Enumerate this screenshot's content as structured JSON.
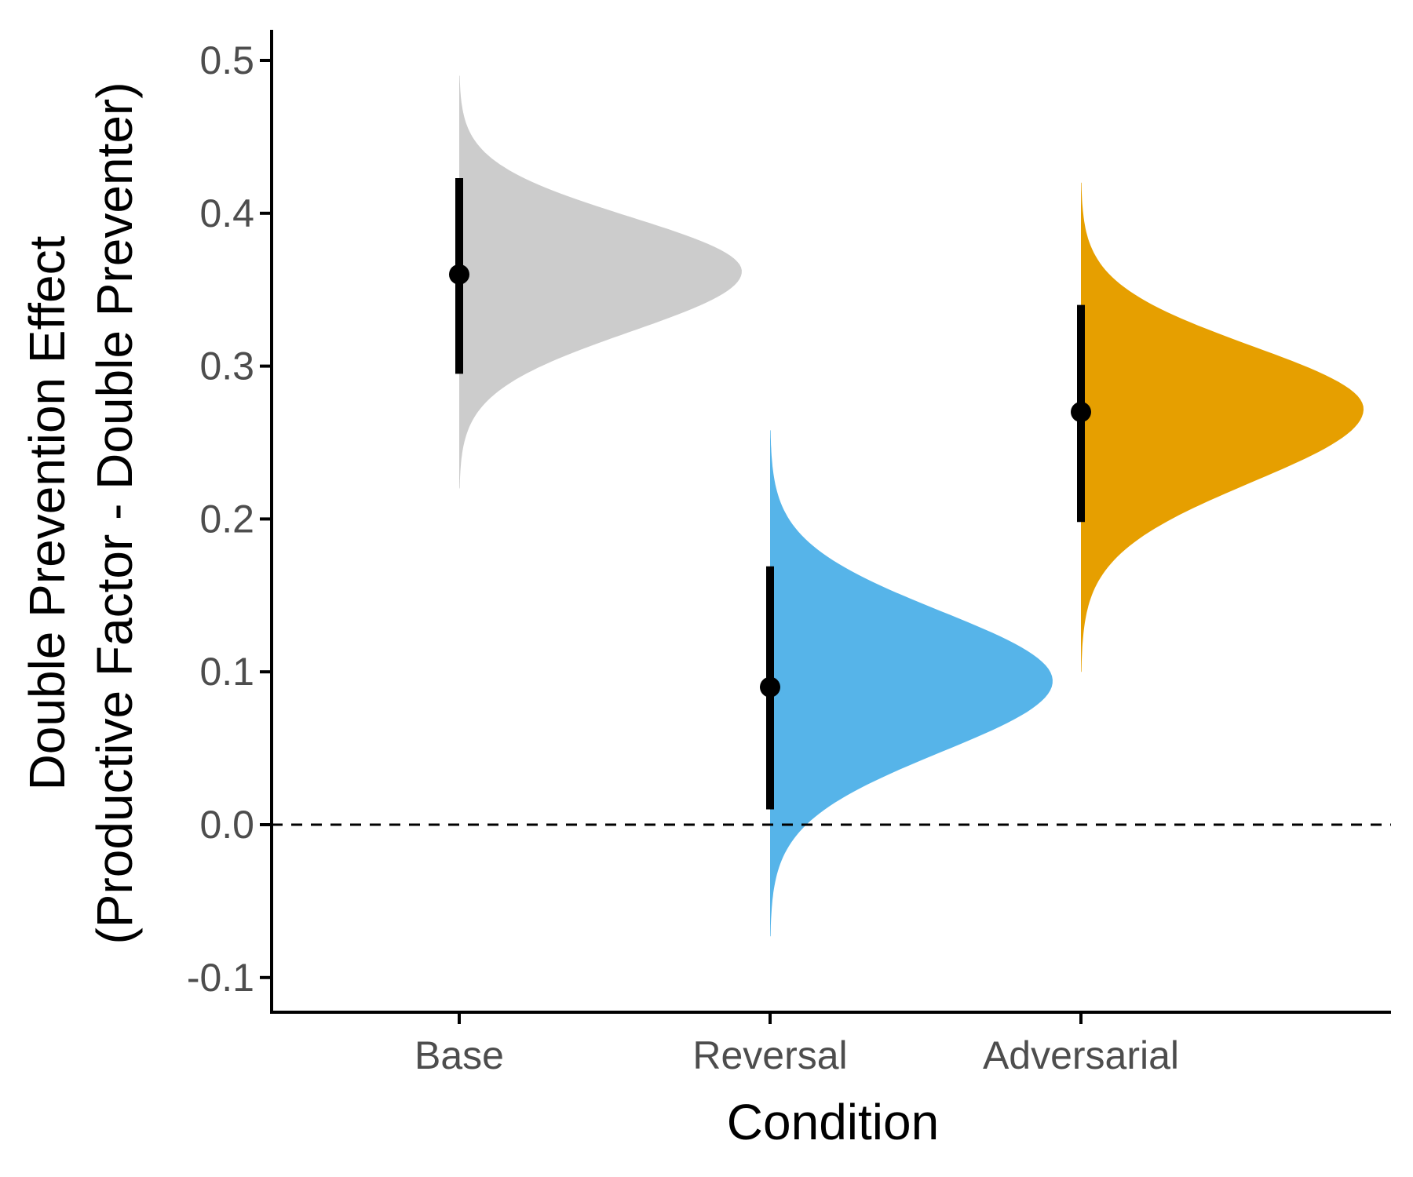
{
  "chart_data": {
    "type": "half-violin with point-interval",
    "title": "",
    "xlabel": "Condition",
    "ylabel_line1": "Double Prevention Effect",
    "ylabel_line2": "(Productive Factor - Double Preventer)",
    "categories": [
      "Base",
      "Reversal",
      "Adversarial"
    ],
    "ylim": [
      -0.12,
      0.52
    ],
    "yticks": [
      -0.1,
      0.0,
      0.1,
      0.2,
      0.3,
      0.4,
      0.5
    ],
    "ytick_labels": [
      "-0.1",
      "0.0",
      "0.1",
      "0.2",
      "0.3",
      "0.4",
      "0.5"
    ],
    "reference_line": {
      "y": 0.0,
      "style": "dashed"
    },
    "grid": false,
    "legend": "none",
    "series": [
      {
        "category": "Base",
        "color": "#cccccc",
        "point_estimate": 0.36,
        "interval": [
          0.295,
          0.423
        ],
        "density_range": [
          0.22,
          0.49
        ],
        "density_mode": 0.362
      },
      {
        "category": "Reversal",
        "color": "#56b4e9",
        "point_estimate": 0.09,
        "interval": [
          0.01,
          0.169
        ],
        "density_range": [
          -0.073,
          0.258
        ],
        "density_mode": 0.094
      },
      {
        "category": "Adversarial",
        "color": "#e69f00",
        "point_estimate": 0.27,
        "interval": [
          0.198,
          0.34
        ],
        "density_range": [
          0.1,
          0.42
        ],
        "density_mode": 0.272
      }
    ]
  }
}
